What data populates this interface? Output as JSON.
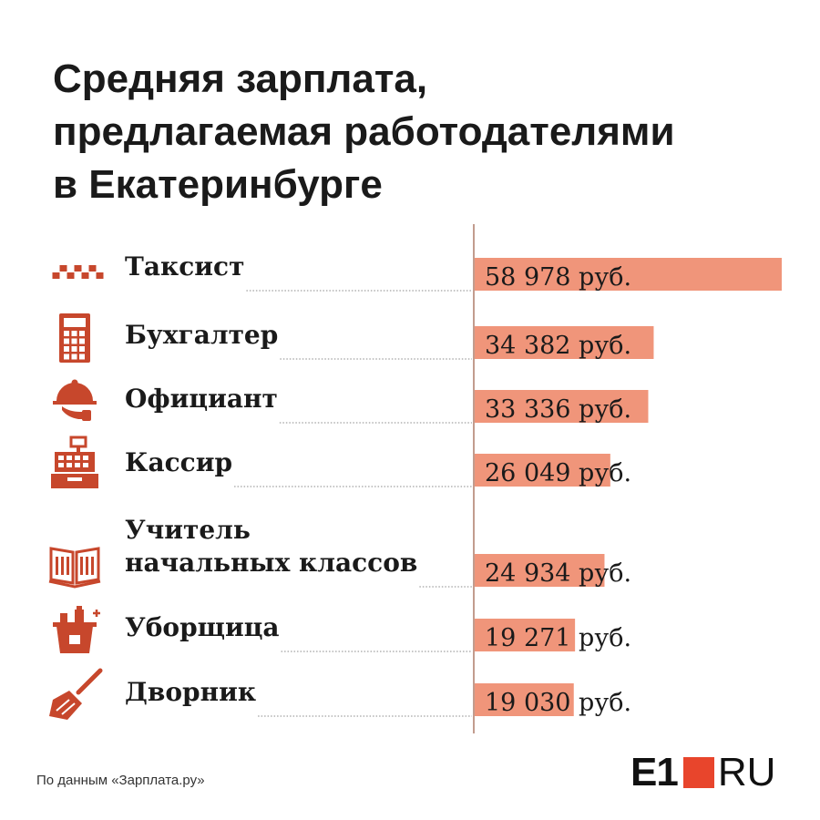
{
  "title_lines": [
    "Средняя зарплата,",
    "предлагаемая работодателями",
    "в Екатеринбурге"
  ],
  "source": "По данным «Зарплата.ру»",
  "logo": {
    "main": "E1",
    "suffix": "RU",
    "accent_color": "#e8452c"
  },
  "colors": {
    "bar": "#f0957a",
    "icon": "#c7472c",
    "axis": "#9a5a44",
    "leader": "#888888"
  },
  "chart_data": {
    "type": "bar",
    "orientation": "horizontal",
    "categories": [
      "Таксист",
      "Бухгалтер",
      "Официант",
      "Кассир",
      "Учитель начальных классов",
      "Уборщица",
      "Дворник"
    ],
    "category_label_lines": [
      [
        "Таксист"
      ],
      [
        "Бухгалтер"
      ],
      [
        "Официант"
      ],
      [
        "Кассир"
      ],
      [
        "Учитель",
        "начальных классов"
      ],
      [
        "Уборщица"
      ],
      [
        "Дворник"
      ]
    ],
    "icons": [
      "taxi-checker-icon",
      "calculator-icon",
      "cloche-icon",
      "cash-register-icon",
      "open-book-icon",
      "cleaning-bucket-icon",
      "broom-icon"
    ],
    "values": [
      58978,
      34382,
      33336,
      26049,
      24934,
      19271,
      19030
    ],
    "value_labels": [
      "58 978 руб.",
      "34 382 руб.",
      "33 336 руб.",
      "26 049 руб.",
      "24 934 руб.",
      "19 271 руб.",
      "19 030 руб."
    ],
    "unit": "руб.",
    "xlim": [
      0,
      58978
    ]
  }
}
